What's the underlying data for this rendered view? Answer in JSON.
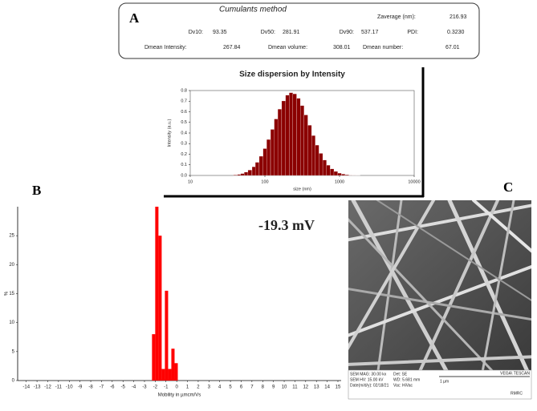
{
  "panel_labels": [
    "A",
    "B",
    "C"
  ],
  "cumulants": {
    "title": "Cumulants method",
    "rows": [
      [
        {
          "label": "Zaverage (nm):",
          "value": "216.93"
        }
      ],
      [
        {
          "label": "Dv10:",
          "value": "93.35"
        },
        {
          "label": "Dv50:",
          "value": "281.91"
        },
        {
          "label": "Dv90:",
          "value": "537.17"
        },
        {
          "label": "PDI:",
          "value": "0.3230"
        }
      ],
      [
        {
          "label": "Dmean Intensity:",
          "value": "267.84"
        },
        {
          "label": "Dmean volume:",
          "value": "308.01"
        },
        {
          "label": "Dmean number:",
          "value": "67.01"
        }
      ]
    ]
  },
  "sem": {
    "footer": [
      "SEM MAG: 30.00 kx",
      "Det: SE",
      "SEM HV: 15.00 kV",
      "WD: 5.681 mm",
      "Date(m/d/y): 02/18/21",
      "Vac: HiVac",
      "1 µm",
      "VEGA\\ TESCAN",
      "RMRC"
    ]
  },
  "chart_data": [
    {
      "type": "bar",
      "title": "Size dispersion by Intensity",
      "xlabel": "size (nm)",
      "ylabel": "Intensity (a.u.)",
      "xscale": "log",
      "color": "#8b0000",
      "x": [
        40,
        45,
        50,
        56,
        63,
        71,
        79,
        89,
        100,
        112,
        126,
        141,
        158,
        178,
        200,
        224,
        251,
        282,
        316,
        355,
        398,
        447,
        501,
        562,
        631,
        708,
        794,
        891,
        1000,
        1122,
        1259,
        1413,
        1585,
        1778,
        1995
      ],
      "values": [
        0.005,
        0.01,
        0.018,
        0.031,
        0.051,
        0.082,
        0.124,
        0.181,
        0.253,
        0.339,
        0.434,
        0.532,
        0.625,
        0.702,
        0.756,
        0.78,
        0.769,
        0.727,
        0.658,
        0.57,
        0.473,
        0.376,
        0.286,
        0.208,
        0.145,
        0.097,
        0.062,
        0.038,
        0.022,
        0.013,
        0.007,
        0.003,
        0.002,
        0.001,
        0.0
      ],
      "xlim": [
        10,
        10000
      ],
      "xticks": [
        10,
        100,
        1000,
        10000
      ],
      "ylim": [
        0,
        0.8
      ],
      "yticks": [
        {
          "value": 0,
          "label": "0.0"
        },
        0.1,
        0.2,
        0.3,
        0.4,
        0.5,
        0.6,
        0.7,
        0.8
      ]
    },
    {
      "type": "histogram",
      "xlabel": "Mobility in µmcm/Vs",
      "ylabel": "%",
      "annotation": "-19.3 mV",
      "color": "#ff0000",
      "bins": [
        -2.3,
        -2.0,
        -1.7,
        -1.4,
        -1.1,
        -0.8,
        -0.5,
        -0.2,
        0.1
      ],
      "values": [
        8,
        30,
        25,
        2,
        15.5,
        2,
        5.5,
        3
      ],
      "xlim": [
        -14.8,
        15.3
      ],
      "xticks": [
        -14,
        -13,
        -12,
        -11,
        -10,
        -9,
        -8,
        -7,
        -6,
        -5,
        -4,
        -3,
        -2,
        -1,
        0,
        1,
        2,
        3,
        4,
        5,
        6,
        7,
        8,
        9,
        10,
        11,
        12,
        13,
        14,
        15
      ],
      "ylim": [
        0,
        30
      ],
      "yticks": [
        0,
        5,
        10,
        15,
        20,
        25
      ]
    }
  ]
}
